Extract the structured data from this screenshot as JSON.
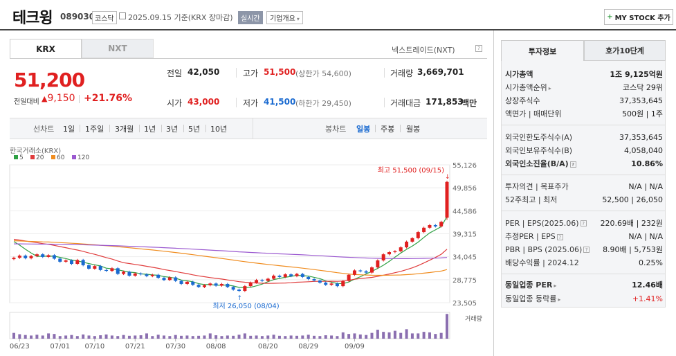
{
  "header": {
    "name": "테크윙",
    "code": "089030",
    "market": "코스닥",
    "date": "2025.09.15",
    "date_suffix": "기준(KRX 장마감)",
    "realtime": "실시간",
    "company_overview": "기업개요",
    "mystock": "MY STOCK 추가"
  },
  "tabs": {
    "krx": "KRX",
    "nxt": "NXT",
    "nextrade": "넥스트레이드(NXT)"
  },
  "quote": {
    "price": "51,200",
    "change_label": "전일대비",
    "change_amount": "9,150",
    "change_percent": "+21.76%",
    "prev_label": "전일",
    "prev": "42,050",
    "open_label": "시가",
    "open": "43,000",
    "high_label": "고가",
    "high": "51,500",
    "upper_limit": "(상한가 54,600)",
    "low_label": "저가",
    "low": "41,500",
    "lower_limit": "(하한가 29,450)",
    "volume_label": "거래량",
    "volume": "3,669,701",
    "amount_label": "거래대금",
    "amount": "171,853",
    "amount_unit": "백만"
  },
  "period": {
    "line_label": "선차트",
    "line_options": [
      "1일",
      "1주일",
      "3개월",
      "1년",
      "3년",
      "5년",
      "10년"
    ],
    "candle_label": "봉차트",
    "candle_options": [
      "일봉",
      "주봉",
      "월봉"
    ],
    "selected": "일봉"
  },
  "chart_data": {
    "type": "candlestick",
    "exchange_label": "한국거래소(KRX)",
    "ma_legend": [
      {
        "name": "5",
        "color": "#2ea043"
      },
      {
        "name": "20",
        "color": "#e03c3c"
      },
      {
        "name": "60",
        "color": "#f08c1e"
      },
      {
        "name": "120",
        "color": "#9b59d0"
      }
    ],
    "y_ticks": [
      "55,126",
      "49,856",
      "44,586",
      "39,315",
      "34,045",
      "28,775",
      "23,505"
    ],
    "ylim": [
      23505,
      55126
    ],
    "x_ticks": [
      "06/23",
      "07/01",
      "07/10",
      "07/21",
      "07/30",
      "08/08",
      "08/20",
      "08/29",
      "09/09"
    ],
    "high_annotation": "최고 51,500 (09/15)",
    "low_annotation": "최저 26,050 (08/04)",
    "volume_label": "거래량",
    "up_color": "#e02020",
    "down_color": "#1a6ad0",
    "closes": [
      33800,
      34300,
      33700,
      34200,
      34600,
      34000,
      34400,
      33600,
      32900,
      33200,
      32400,
      33300,
      32100,
      31300,
      31900,
      31000,
      30800,
      31400,
      30100,
      30600,
      29700,
      30200,
      30000,
      29600,
      29900,
      29200,
      28700,
      29300,
      28500,
      27800,
      28300,
      27600,
      27100,
      27500,
      27900,
      27400,
      27800,
      27100,
      26500,
      26200,
      27300,
      28100,
      28700,
      28500,
      29000,
      29700,
      29400,
      30000,
      29600,
      30100,
      29400,
      28900,
      28600,
      28100,
      27600,
      27900,
      27300,
      28500,
      29900,
      30900,
      30700,
      30400,
      31600,
      33200,
      34600,
      35100,
      35300,
      36200,
      37500,
      38300,
      39700,
      40700,
      41300,
      41000,
      42050,
      51200
    ],
    "volumes": [
      0.22,
      0.17,
      0.14,
      0.12,
      0.15,
      0.12,
      0.2,
      0.18,
      0.1,
      0.12,
      0.14,
      0.1,
      0.16,
      0.12,
      0.1,
      0.13,
      0.16,
      0.12,
      0.1,
      0.14,
      0.11,
      0.12,
      0.13,
      0.2,
      0.1,
      0.15,
      0.12,
      0.1,
      0.14,
      0.11,
      0.12,
      0.1,
      0.11,
      0.12,
      0.2,
      0.13,
      0.1,
      0.12,
      0.11,
      0.15,
      0.2,
      0.11,
      0.12,
      0.1,
      0.12,
      0.15,
      0.11,
      0.1,
      0.12,
      0.11,
      0.12,
      0.15,
      0.11,
      0.1,
      0.13,
      0.12,
      0.1,
      0.24,
      0.18,
      0.2,
      0.16,
      0.14,
      0.22,
      0.34,
      0.26,
      0.24,
      0.3,
      0.22,
      0.36,
      0.2,
      0.2,
      0.26,
      0.24,
      0.18,
      0.22,
      0.94
    ]
  },
  "right_tabs": {
    "invest": "투자정보",
    "hoga": "호가10단계"
  },
  "invest_info": {
    "market_cap_label": "시가총액",
    "market_cap": "1조 9,125억원",
    "market_cap_rank_label": "시가총액순위",
    "market_cap_rank": "코스닥 29위",
    "shares_label": "상장주식수",
    "shares": "37,353,645",
    "par_label": "액면가 | 매매단위",
    "par": "500원 | 1주",
    "foreign_limit_label": "외국인한도주식수(A)",
    "foreign_limit": "37,353,645",
    "foreign_hold_label": "외국인보유주식수(B)",
    "foreign_hold": "4,058,040",
    "foreign_ratio_label": "외국인소진율(B/A)",
    "foreign_ratio": "10.86%",
    "opinion_label": "투자의견 | 목표주가",
    "opinion": "N/A | N/A",
    "week52_label": "52주최고 | 최저",
    "week52": "52,500 | 26,050",
    "per_label": "PER | EPS(2025.06)",
    "per": "220.69배 | 232원",
    "est_per_label": "추정PER | EPS",
    "est_per": "N/A | N/A",
    "pbr_label": "PBR | BPS (2025.06)",
    "pbr": "8.90배 | 5,753원",
    "dividend_label": "배당수익률 | 2024.12",
    "dividend": "0.25%",
    "industry_per_label": "동일업종 PER",
    "industry_per": "12.46배",
    "industry_change_label": "동일업종 등락률",
    "industry_change": "+1.41%"
  }
}
